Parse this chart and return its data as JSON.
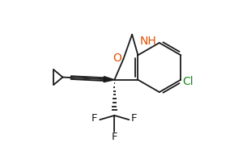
{
  "bg_color": "#ffffff",
  "line_color": "#1a1a1a",
  "O_color": "#e05000",
  "NH_color": "#e05000",
  "Cl_color": "#1a8a1a",
  "F_color": "#1a1a1a",
  "figsize": [
    2.89,
    1.77
  ],
  "dpi": 100,
  "xlim": [
    0,
    9.5
  ],
  "ylim": [
    0,
    5.8
  ]
}
